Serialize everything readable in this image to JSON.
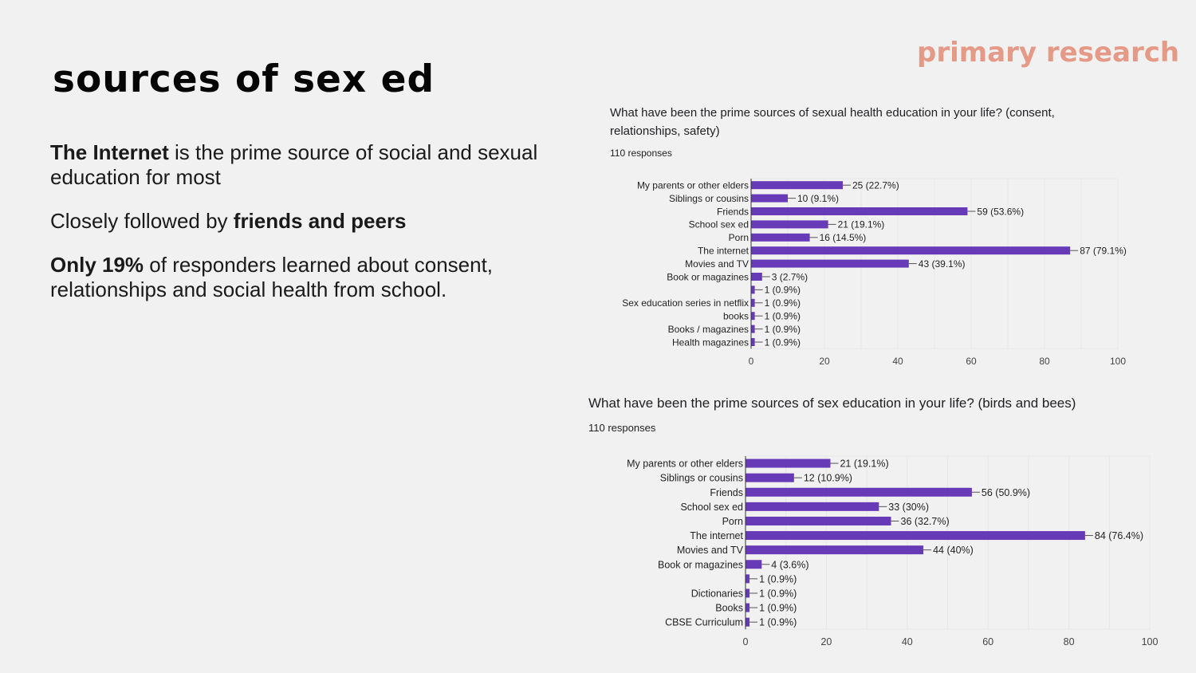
{
  "slide": {
    "title": "sources of sex ed",
    "tag": "primary research",
    "p1_bold": "The Internet",
    "p1_rest": " is the prime source of social and sexual education for most",
    "p2_prefix": "Closely followed by ",
    "p2_bold": "friends and peers",
    "p3_bold": "Only 19%",
    "p3_rest": " of responders learned about consent, relationships and social health from school."
  },
  "colors": {
    "bar": "#673ab7",
    "tag": "#e59a88",
    "grid": "#e6e6e6"
  },
  "chart_data": [
    {
      "type": "bar",
      "orientation": "horizontal",
      "title": "What have been the prime sources of sexual health education in your life? (consent, relationships, safety)",
      "responses": "110 responses",
      "categories": [
        "My parents or other elders",
        "Siblings or cousins",
        "Friends",
        "School sex ed",
        "Porn",
        "The internet",
        "Movies and TV",
        "Book or magazines",
        "",
        "Sex education series in netflix",
        "books",
        "Books / magazines",
        "Health magazines"
      ],
      "values": [
        25,
        10,
        59,
        21,
        16,
        87,
        43,
        3,
        1,
        1,
        1,
        1,
        1
      ],
      "labels": [
        "25 (22.7%)",
        "10 (9.1%)",
        "59 (53.6%)",
        "21 (19.1%)",
        "16 (14.5%)",
        "87 (79.1%)",
        "43 (39.1%)",
        "3 (2.7%)",
        "1 (0.9%)",
        "1 (0.9%)",
        "1 (0.9%)",
        "1 (0.9%)",
        "1 (0.9%)"
      ],
      "xlim": [
        0,
        100
      ],
      "xticks": [
        "0",
        "20",
        "40",
        "60",
        "80",
        "100"
      ]
    },
    {
      "type": "bar",
      "orientation": "horizontal",
      "title": "What have been the prime sources of sex education in your life? (birds and bees)",
      "responses": "110 responses",
      "categories": [
        "My parents or other elders",
        "Siblings or cousins",
        "Friends",
        "School sex ed",
        "Porn",
        "The internet",
        "Movies and TV",
        "Book or magazines",
        "",
        "Dictionaries",
        "Books",
        "CBSE Curriculum"
      ],
      "values": [
        21,
        12,
        56,
        33,
        36,
        84,
        44,
        4,
        1,
        1,
        1,
        1
      ],
      "labels": [
        "21 (19.1%)",
        "12 (10.9%)",
        "56 (50.9%)",
        "33 (30%)",
        "36 (32.7%)",
        "84 (76.4%)",
        "44 (40%)",
        "4 (3.6%)",
        "1 (0.9%)",
        "1 (0.9%)",
        "1 (0.9%)",
        "1 (0.9%)"
      ],
      "xlim": [
        0,
        100
      ],
      "xticks": [
        "0",
        "20",
        "40",
        "60",
        "80",
        "100"
      ]
    }
  ]
}
